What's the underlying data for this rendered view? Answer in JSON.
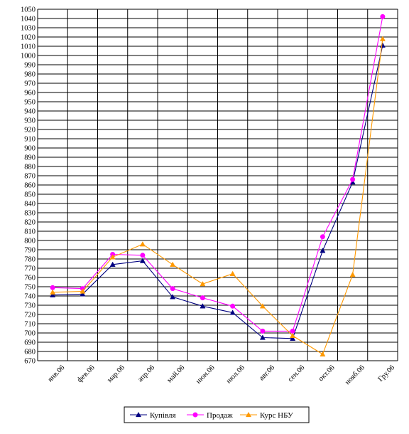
{
  "chart_data": {
    "type": "line",
    "categories": [
      "янв.06",
      "фев.06",
      "мар.06",
      "апр.06",
      "май.06",
      "июн.06",
      "июл.06",
      "авг.06",
      "сен.06",
      "окт.06",
      "нояб.06",
      "Гру.06"
    ],
    "ylim": [
      670,
      1050
    ],
    "ystep": 10,
    "grid": true,
    "legend_position": "bottom",
    "series": [
      {
        "name": "Купівля",
        "color": "#000080",
        "marker": "triangle",
        "values": [
          741,
          742,
          774,
          778,
          739,
          729,
          722,
          695,
          694,
          789,
          863,
          1011
        ]
      },
      {
        "name": "Продаж",
        "color": "#ff00ff",
        "marker": "circle",
        "values": [
          749,
          748,
          785,
          784,
          748,
          738,
          729,
          702,
          702,
          804,
          866,
          1042
        ]
      },
      {
        "name": "Курс НБУ",
        "color": "#ff9900",
        "marker": "triangle",
        "values": [
          744,
          745,
          782,
          796,
          774,
          753,
          764,
          729,
          697,
          677,
          763,
          1018
        ]
      }
    ]
  }
}
